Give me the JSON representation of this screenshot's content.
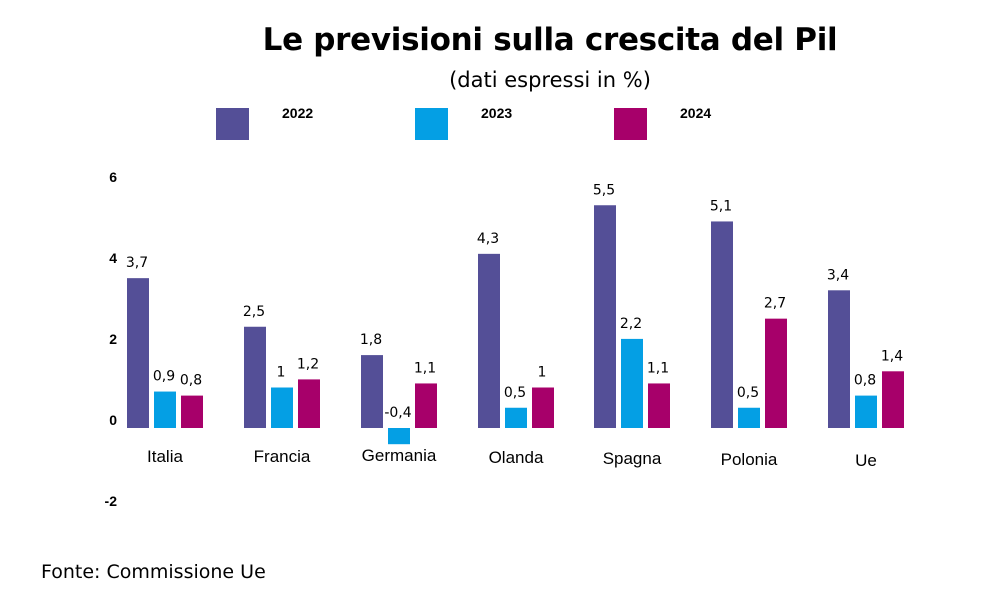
{
  "title": "Le previsioni sulla crescita del Pil",
  "subtitle": "(dati espressi in %)",
  "source": "Fonte: Commissione Ue",
  "colors": {
    "2022": "#544f97",
    "2023": "#049fe4",
    "2024": "#a7006a"
  },
  "chart_data": {
    "type": "bar",
    "title": "Le previsioni sulla crescita del Pil",
    "subtitle": "(dati espressi in %)",
    "xlabel": "",
    "ylabel": "",
    "ylim": [
      -2,
      6
    ],
    "yticks": [
      "6",
      "4",
      "2",
      "0",
      "-2"
    ],
    "grid": false,
    "legend_position": "top",
    "categories": [
      "Italia",
      "Francia",
      "Germania",
      "Olanda",
      "Spagna",
      "Polonia",
      "Ue"
    ],
    "series": [
      {
        "name": "2022",
        "values": [
          3.7,
          2.5,
          1.8,
          4.3,
          5.5,
          5.1,
          3.4
        ],
        "labels": [
          "3,7",
          "2,5",
          "1,8",
          "4,3",
          "5,5",
          "5,1",
          "3,4"
        ]
      },
      {
        "name": "2023",
        "values": [
          0.9,
          1,
          -0.4,
          0.5,
          2.2,
          0.5,
          0.8
        ],
        "labels": [
          "0,9",
          "1",
          "-0,4",
          "0,5",
          "2,2",
          "0,5",
          "0,8"
        ]
      },
      {
        "name": "2024",
        "values": [
          0.8,
          1.2,
          1.1,
          1,
          1.1,
          2.7,
          1.4
        ],
        "labels": [
          "0,8",
          "1,2",
          "1,1",
          "1",
          "1,1",
          "2,7",
          "1,4"
        ]
      }
    ]
  }
}
